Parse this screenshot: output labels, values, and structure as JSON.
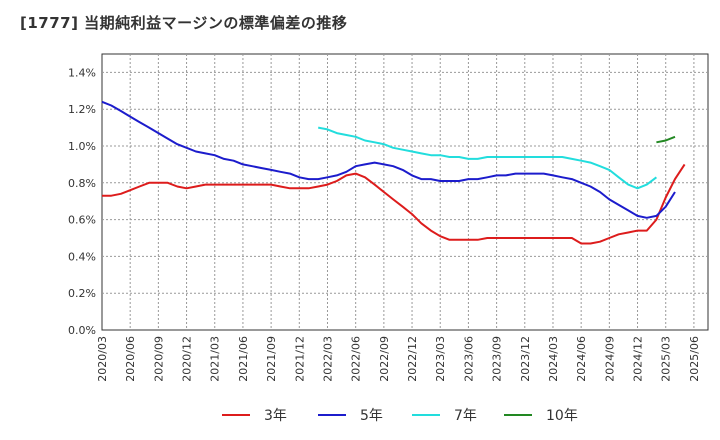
{
  "chart_data": {
    "type": "line",
    "title": "[1777]  当期純利益マージンの標準偏差の推移",
    "xlabel": "",
    "ylabel": "",
    "x": [
      "2020/03",
      "2020/06",
      "2020/09",
      "2020/12",
      "2021/03",
      "2021/06",
      "2021/09",
      "2021/12",
      "2022/03",
      "2022/06",
      "2022/09",
      "2022/12",
      "2023/03",
      "2023/06",
      "2023/09",
      "2023/12",
      "2024/03",
      "2024/06",
      "2024/09",
      "2024/12",
      "2025/03",
      "2025/06"
    ],
    "yticks": [
      "0.0%",
      "0.2%",
      "0.4%",
      "0.6%",
      "0.8%",
      "1.0%",
      "1.2%",
      "1.4%"
    ],
    "ylim": [
      0,
      1.5
    ],
    "grid": true,
    "legend_position": "bottom",
    "series": [
      {
        "name": "3年",
        "color": "#dd1c1c",
        "points": [
          [
            0,
            0.73
          ],
          [
            0.33,
            0.73
          ],
          [
            0.67,
            0.74
          ],
          [
            1,
            0.76
          ],
          [
            1.33,
            0.78
          ],
          [
            1.67,
            0.8
          ],
          [
            2,
            0.8
          ],
          [
            2.33,
            0.8
          ],
          [
            2.67,
            0.78
          ],
          [
            3,
            0.77
          ],
          [
            3.33,
            0.78
          ],
          [
            3.67,
            0.79
          ],
          [
            4,
            0.79
          ],
          [
            4.33,
            0.79
          ],
          [
            4.67,
            0.79
          ],
          [
            5,
            0.79
          ],
          [
            5.33,
            0.79
          ],
          [
            5.67,
            0.79
          ],
          [
            6,
            0.79
          ],
          [
            6.33,
            0.78
          ],
          [
            6.67,
            0.77
          ],
          [
            7,
            0.77
          ],
          [
            7.33,
            0.77
          ],
          [
            7.67,
            0.78
          ],
          [
            8,
            0.79
          ],
          [
            8.33,
            0.81
          ],
          [
            8.67,
            0.84
          ],
          [
            9,
            0.85
          ],
          [
            9.33,
            0.83
          ],
          [
            9.67,
            0.79
          ],
          [
            10,
            0.75
          ],
          [
            10.33,
            0.71
          ],
          [
            10.67,
            0.67
          ],
          [
            11,
            0.63
          ],
          [
            11.33,
            0.58
          ],
          [
            11.67,
            0.54
          ],
          [
            12,
            0.51
          ],
          [
            12.33,
            0.49
          ],
          [
            12.67,
            0.49
          ],
          [
            13,
            0.49
          ],
          [
            13.33,
            0.49
          ],
          [
            13.67,
            0.5
          ],
          [
            14,
            0.5
          ],
          [
            14.33,
            0.5
          ],
          [
            14.67,
            0.5
          ],
          [
            15,
            0.5
          ],
          [
            15.33,
            0.5
          ],
          [
            15.67,
            0.5
          ],
          [
            16,
            0.5
          ],
          [
            16.33,
            0.5
          ],
          [
            16.67,
            0.5
          ],
          [
            17,
            0.47
          ],
          [
            17.33,
            0.47
          ],
          [
            17.67,
            0.48
          ],
          [
            18,
            0.5
          ],
          [
            18.33,
            0.52
          ],
          [
            18.67,
            0.53
          ],
          [
            19,
            0.54
          ],
          [
            19.33,
            0.54
          ],
          [
            19.67,
            0.6
          ],
          [
            20,
            0.72
          ],
          [
            20.33,
            0.82
          ],
          [
            20.67,
            0.9
          ]
        ]
      },
      {
        "name": "5年",
        "color": "#1c1ccc",
        "points": [
          [
            0,
            1.24
          ],
          [
            0.33,
            1.22
          ],
          [
            0.67,
            1.19
          ],
          [
            1,
            1.16
          ],
          [
            1.33,
            1.13
          ],
          [
            1.67,
            1.1
          ],
          [
            2,
            1.07
          ],
          [
            2.33,
            1.04
          ],
          [
            2.67,
            1.01
          ],
          [
            3,
            0.99
          ],
          [
            3.33,
            0.97
          ],
          [
            3.67,
            0.96
          ],
          [
            4,
            0.95
          ],
          [
            4.33,
            0.93
          ],
          [
            4.67,
            0.92
          ],
          [
            5,
            0.9
          ],
          [
            5.33,
            0.89
          ],
          [
            5.67,
            0.88
          ],
          [
            6,
            0.87
          ],
          [
            6.33,
            0.86
          ],
          [
            6.67,
            0.85
          ],
          [
            7,
            0.83
          ],
          [
            7.33,
            0.82
          ],
          [
            7.67,
            0.82
          ],
          [
            8,
            0.83
          ],
          [
            8.33,
            0.84
          ],
          [
            8.67,
            0.86
          ],
          [
            9,
            0.89
          ],
          [
            9.33,
            0.9
          ],
          [
            9.67,
            0.91
          ],
          [
            10,
            0.9
          ],
          [
            10.33,
            0.89
          ],
          [
            10.67,
            0.87
          ],
          [
            11,
            0.84
          ],
          [
            11.33,
            0.82
          ],
          [
            11.67,
            0.82
          ],
          [
            12,
            0.81
          ],
          [
            12.33,
            0.81
          ],
          [
            12.67,
            0.81
          ],
          [
            13,
            0.82
          ],
          [
            13.33,
            0.82
          ],
          [
            13.67,
            0.83
          ],
          [
            14,
            0.84
          ],
          [
            14.33,
            0.84
          ],
          [
            14.67,
            0.85
          ],
          [
            15,
            0.85
          ],
          [
            15.33,
            0.85
          ],
          [
            15.67,
            0.85
          ],
          [
            16,
            0.84
          ],
          [
            16.33,
            0.83
          ],
          [
            16.67,
            0.82
          ],
          [
            17,
            0.8
          ],
          [
            17.33,
            0.78
          ],
          [
            17.67,
            0.75
          ],
          [
            18,
            0.71
          ],
          [
            18.33,
            0.68
          ],
          [
            18.67,
            0.65
          ],
          [
            19,
            0.62
          ],
          [
            19.33,
            0.61
          ],
          [
            19.67,
            0.62
          ],
          [
            20,
            0.67
          ],
          [
            20.33,
            0.75
          ]
        ]
      },
      {
        "name": "7年",
        "color": "#22dddd",
        "points": [
          [
            7.67,
            1.1
          ],
          [
            8,
            1.09
          ],
          [
            8.33,
            1.07
          ],
          [
            8.67,
            1.06
          ],
          [
            9,
            1.05
          ],
          [
            9.33,
            1.03
          ],
          [
            9.67,
            1.02
          ],
          [
            10,
            1.01
          ],
          [
            10.33,
            0.99
          ],
          [
            10.67,
            0.98
          ],
          [
            11,
            0.97
          ],
          [
            11.33,
            0.96
          ],
          [
            11.67,
            0.95
          ],
          [
            12,
            0.95
          ],
          [
            12.33,
            0.94
          ],
          [
            12.67,
            0.94
          ],
          [
            13,
            0.93
          ],
          [
            13.33,
            0.93
          ],
          [
            13.67,
            0.94
          ],
          [
            14,
            0.94
          ],
          [
            14.33,
            0.94
          ],
          [
            14.67,
            0.94
          ],
          [
            15,
            0.94
          ],
          [
            15.33,
            0.94
          ],
          [
            15.67,
            0.94
          ],
          [
            16,
            0.94
          ],
          [
            16.33,
            0.94
          ],
          [
            16.67,
            0.93
          ],
          [
            17,
            0.92
          ],
          [
            17.33,
            0.91
          ],
          [
            17.67,
            0.89
          ],
          [
            18,
            0.87
          ],
          [
            18.33,
            0.83
          ],
          [
            18.67,
            0.79
          ],
          [
            19,
            0.77
          ],
          [
            19.33,
            0.79
          ],
          [
            19.67,
            0.83
          ]
        ]
      },
      {
        "name": "10年",
        "color": "#228822",
        "points": [
          [
            19.67,
            1.02
          ],
          [
            20,
            1.03
          ],
          [
            20.33,
            1.05
          ]
        ]
      }
    ]
  }
}
